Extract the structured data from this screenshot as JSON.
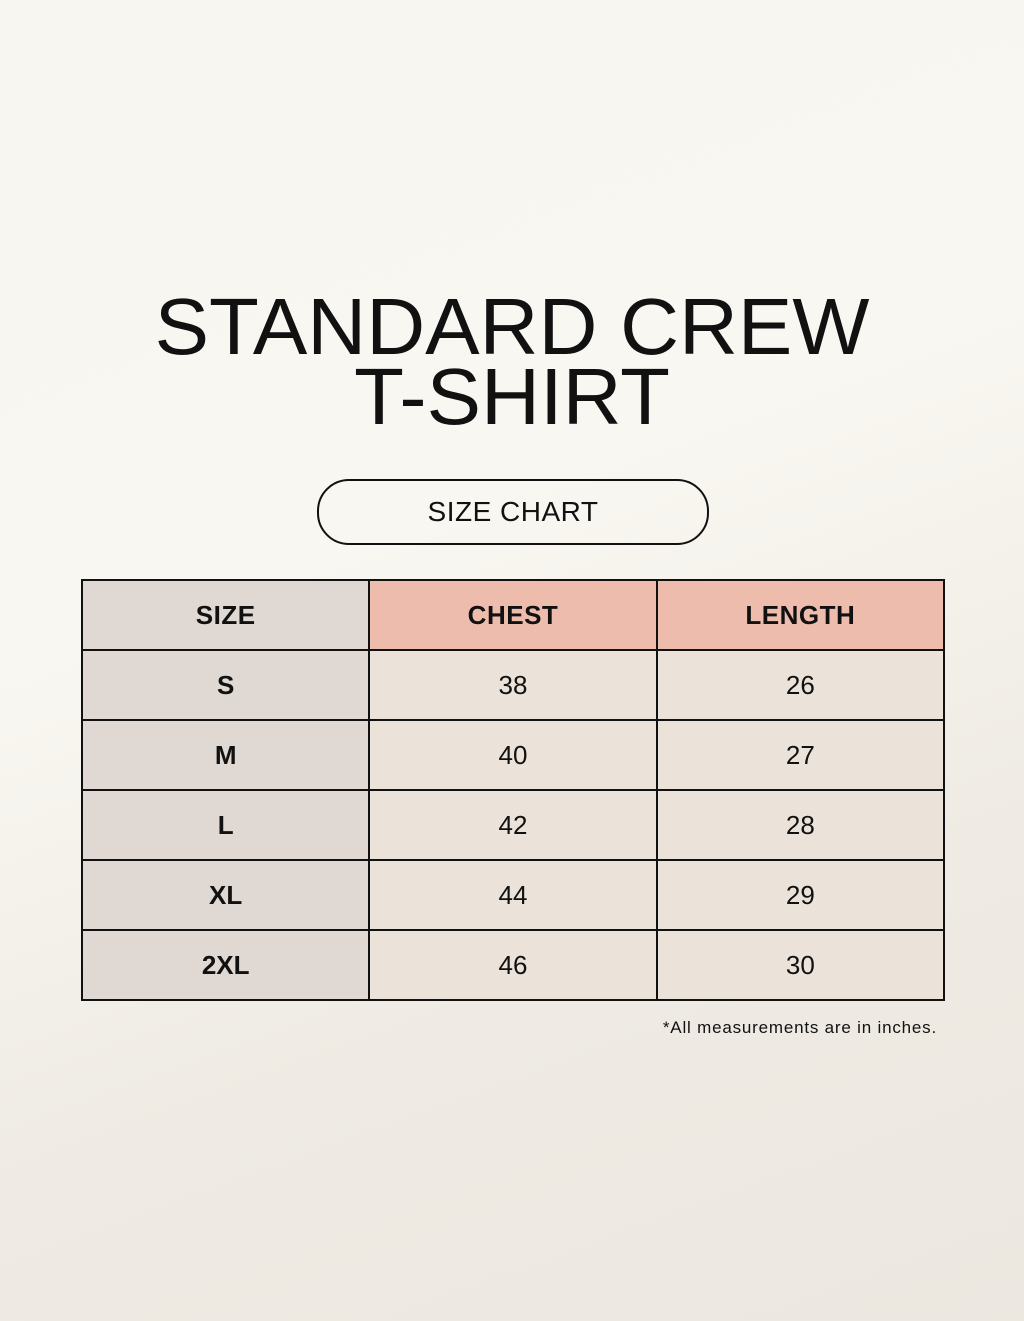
{
  "title": {
    "line1": "STANDARD CREW",
    "line2": "T-SHIRT"
  },
  "subtitle": "SIZE CHART",
  "table": {
    "headers": [
      "SIZE",
      "CHEST",
      "LENGTH"
    ],
    "rows": [
      [
        "S",
        "38",
        "26"
      ],
      [
        "M",
        "40",
        "27"
      ],
      [
        "L",
        "42",
        "28"
      ],
      [
        "XL",
        "44",
        "29"
      ],
      [
        "2XL",
        "46",
        "30"
      ]
    ]
  },
  "footnote": "*All measurements are in inches.",
  "colors": {
    "size_column": "#e0d9d3",
    "header_accent": "#eebcad",
    "cell": "#ebe3d9"
  }
}
